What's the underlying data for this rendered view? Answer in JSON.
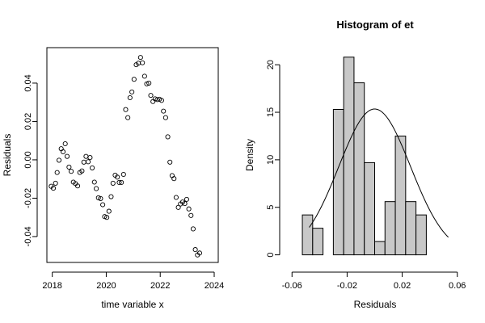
{
  "chart_data": [
    {
      "type": "scatter",
      "title": "",
      "xlabel": "time variable x",
      "ylabel": "Residuals",
      "xlim": [
        2017.8,
        2024.15
      ],
      "ylim": [
        -0.0535,
        0.0585
      ],
      "x_ticks": [
        2018,
        2020,
        2022,
        2024
      ],
      "x_tick_labels": [
        "2018",
        "2020",
        "2022",
        "2024"
      ],
      "y_ticks": [
        -0.04,
        -0.02,
        0.0,
        0.02,
        0.04
      ],
      "y_tick_labels": [
        "-0.04",
        "-0.02",
        "0.00",
        "0.02",
        "0.04"
      ],
      "series": [
        {
          "points": [
            [
              2017.96,
              -0.0138
            ],
            [
              2018.04,
              -0.0148
            ],
            [
              2018.12,
              -0.0122
            ],
            [
              2018.18,
              -0.0066
            ],
            [
              2018.25,
              -0.0002
            ],
            [
              2018.33,
              0.0058
            ],
            [
              2018.4,
              0.0042
            ],
            [
              2018.48,
              0.0084
            ],
            [
              2018.55,
              0.0018
            ],
            [
              2018.62,
              -0.0038
            ],
            [
              2018.7,
              -0.006
            ],
            [
              2018.78,
              -0.0116
            ],
            [
              2018.86,
              -0.0124
            ],
            [
              2018.94,
              -0.0136
            ],
            [
              2019.02,
              -0.0066
            ],
            [
              2019.1,
              -0.0058
            ],
            [
              2019.17,
              -0.0012
            ],
            [
              2019.25,
              0.0018
            ],
            [
              2019.33,
              -0.001
            ],
            [
              2019.4,
              0.0012
            ],
            [
              2019.48,
              -0.0042
            ],
            [
              2019.56,
              -0.0116
            ],
            [
              2019.63,
              -0.015
            ],
            [
              2019.71,
              -0.0198
            ],
            [
              2019.79,
              -0.0202
            ],
            [
              2019.87,
              -0.0234
            ],
            [
              2019.94,
              -0.0296
            ],
            [
              2020.02,
              -0.03
            ],
            [
              2020.1,
              -0.0268
            ],
            [
              2020.18,
              -0.0192
            ],
            [
              2020.25,
              -0.0122
            ],
            [
              2020.33,
              -0.008
            ],
            [
              2020.41,
              -0.009
            ],
            [
              2020.48,
              -0.0118
            ],
            [
              2020.56,
              -0.0118
            ],
            [
              2020.64,
              -0.0076
            ],
            [
              2020.72,
              0.0262
            ],
            [
              2020.8,
              0.022
            ],
            [
              2020.88,
              0.0324
            ],
            [
              2020.95,
              0.0354
            ],
            [
              2021.03,
              0.042
            ],
            [
              2021.11,
              0.0496
            ],
            [
              2021.19,
              0.0504
            ],
            [
              2021.27,
              0.0534
            ],
            [
              2021.34,
              0.0506
            ],
            [
              2021.42,
              0.0436
            ],
            [
              2021.5,
              0.0396
            ],
            [
              2021.58,
              0.04
            ],
            [
              2021.65,
              0.0336
            ],
            [
              2021.73,
              0.0304
            ],
            [
              2021.81,
              0.0318
            ],
            [
              2021.89,
              0.0314
            ],
            [
              2021.97,
              0.0316
            ],
            [
              2022.05,
              0.031
            ],
            [
              2022.12,
              0.0254
            ],
            [
              2022.2,
              0.022
            ],
            [
              2022.28,
              0.012
            ],
            [
              2022.36,
              -0.0012
            ],
            [
              2022.44,
              -0.0082
            ],
            [
              2022.51,
              -0.0098
            ],
            [
              2022.59,
              -0.0196
            ],
            [
              2022.67,
              -0.0248
            ],
            [
              2022.75,
              -0.023
            ],
            [
              2022.83,
              -0.022
            ],
            [
              2022.91,
              -0.0228
            ],
            [
              2022.98,
              -0.0206
            ],
            [
              2023.06,
              -0.0256
            ],
            [
              2023.14,
              -0.029
            ],
            [
              2023.22,
              -0.036
            ],
            [
              2023.3,
              -0.0468
            ],
            [
              2023.38,
              -0.0496
            ],
            [
              2023.46,
              -0.0486
            ]
          ]
        }
      ]
    },
    {
      "type": "bar",
      "title": "Histogram of et",
      "xlabel": "Residuals",
      "ylabel": "Density",
      "xlim": [
        -0.0625,
        0.0625
      ],
      "ylim": [
        -0.8,
        21.8
      ],
      "x_ticks": [
        -0.06,
        -0.02,
        0.02,
        0.06
      ],
      "x_tick_labels": [
        "-0.06",
        "-0.02",
        "0.02",
        "0.06"
      ],
      "y_ticks": [
        0,
        5,
        10,
        15,
        20
      ],
      "y_tick_labels": [
        "0",
        "5",
        "10",
        "15",
        "20"
      ],
      "bin_width": 0.0075,
      "bins": [
        {
          "start": -0.0525,
          "end": -0.045,
          "density": 4.2
        },
        {
          "start": -0.045,
          "end": -0.0375,
          "density": 2.8
        },
        {
          "start": -0.0375,
          "end": -0.03,
          "density": 0.0
        },
        {
          "start": -0.03,
          "end": -0.0225,
          "density": 15.3
        },
        {
          "start": -0.0225,
          "end": -0.015,
          "density": 20.8
        },
        {
          "start": -0.015,
          "end": -0.0075,
          "density": 18.1
        },
        {
          "start": -0.0075,
          "end": 0.0,
          "density": 9.7
        },
        {
          "start": 0.0,
          "end": 0.0075,
          "density": 1.4
        },
        {
          "start": 0.0075,
          "end": 0.015,
          "density": 5.6
        },
        {
          "start": 0.015,
          "end": 0.0225,
          "density": 12.5
        },
        {
          "start": 0.0225,
          "end": 0.03,
          "density": 5.6
        },
        {
          "start": 0.03,
          "end": 0.0375,
          "density": 4.2
        }
      ],
      "density_curve": {
        "mean": 0.0,
        "sd": 0.026,
        "x_range": [
          -0.0475,
          0.0535
        ]
      }
    }
  ]
}
